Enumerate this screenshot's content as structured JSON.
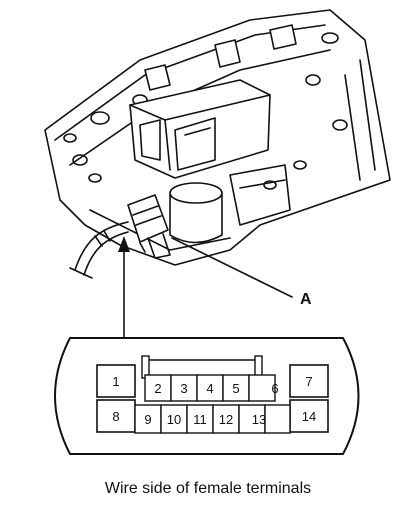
{
  "callout_label": "A",
  "caption": "Wire side of female terminals",
  "connector": {
    "top_row": [
      "1",
      "2",
      "3",
      "4",
      "5",
      "6",
      "7"
    ],
    "bottom_row": [
      "8",
      "9",
      "10",
      "11",
      "12",
      "13",
      "14"
    ]
  },
  "colors": {
    "line": "#111111",
    "background": "#ffffff"
  }
}
